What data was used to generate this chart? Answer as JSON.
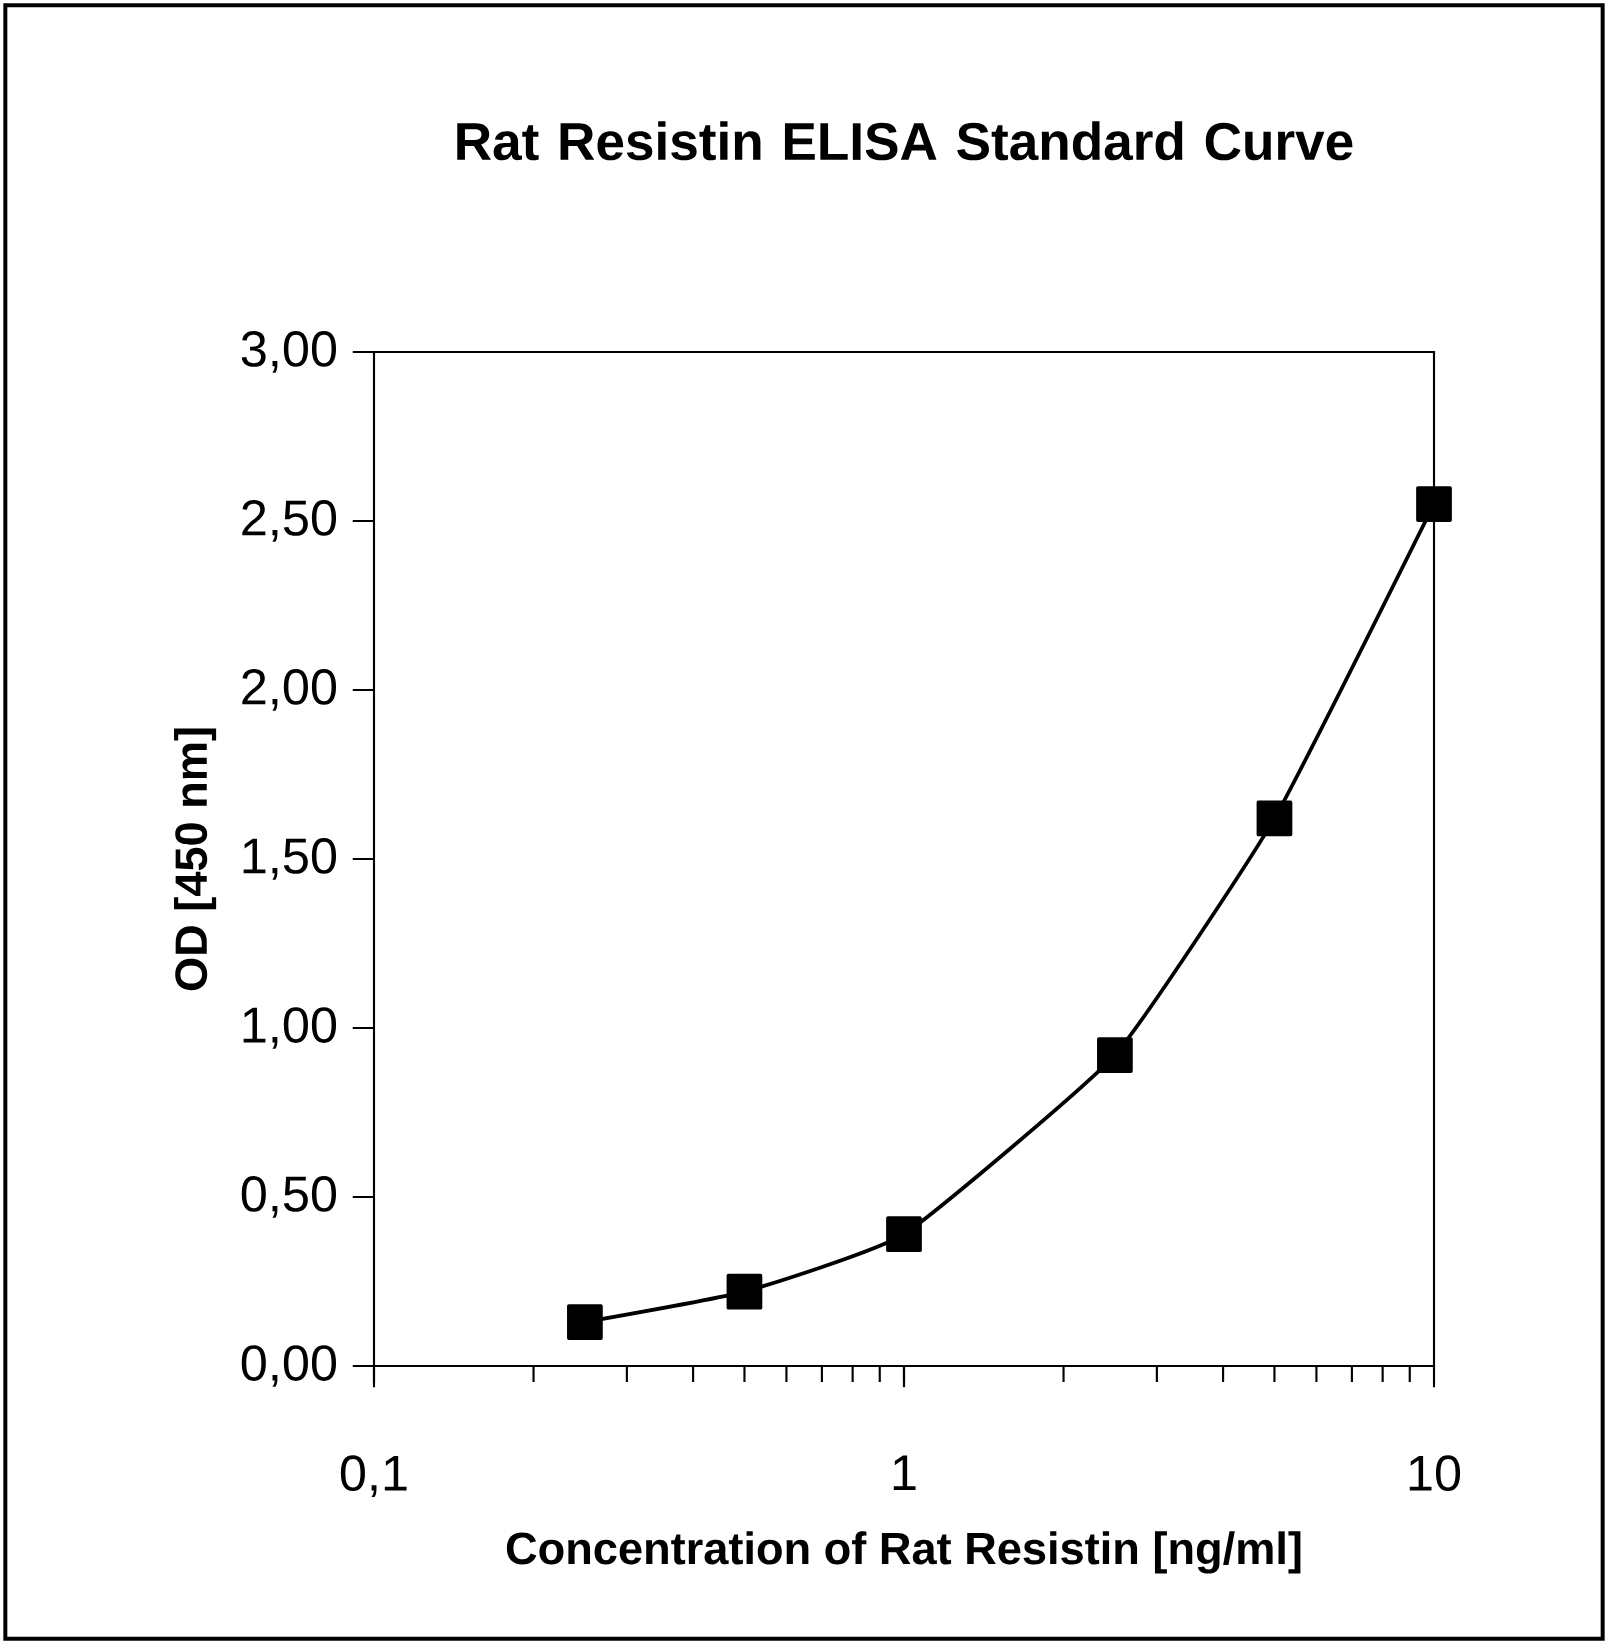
{
  "chart_data": {
    "type": "line",
    "title": "Rat Resistin ELISA Standard Curve",
    "xlabel": "Concentration of Rat Resistin [ng/ml]",
    "ylabel": "OD [450 nm]",
    "x": [
      0.25,
      0.5,
      1,
      2.5,
      5,
      10
    ],
    "values": [
      0.13,
      0.22,
      0.39,
      0.92,
      1.62,
      2.55
    ],
    "color": "#000000",
    "marker": "square",
    "line_style": "solid",
    "log": "x",
    "xlim": [
      0.1,
      10
    ],
    "ylim": [
      0,
      3
    ],
    "xticks": [
      {
        "value": 0.1,
        "label": "0,1"
      },
      1,
      10
    ],
    "yticks": [
      {
        "value": 0,
        "label": "0,00"
      },
      {
        "value": 0.5,
        "label": "0,50"
      },
      {
        "value": 1,
        "label": "1,00"
      },
      {
        "value": 1.5,
        "label": "1,50"
      },
      {
        "value": 2,
        "label": "2,00"
      },
      {
        "value": 2.5,
        "label": "2,50"
      },
      {
        "value": 3,
        "label": "3,00"
      }
    ]
  }
}
